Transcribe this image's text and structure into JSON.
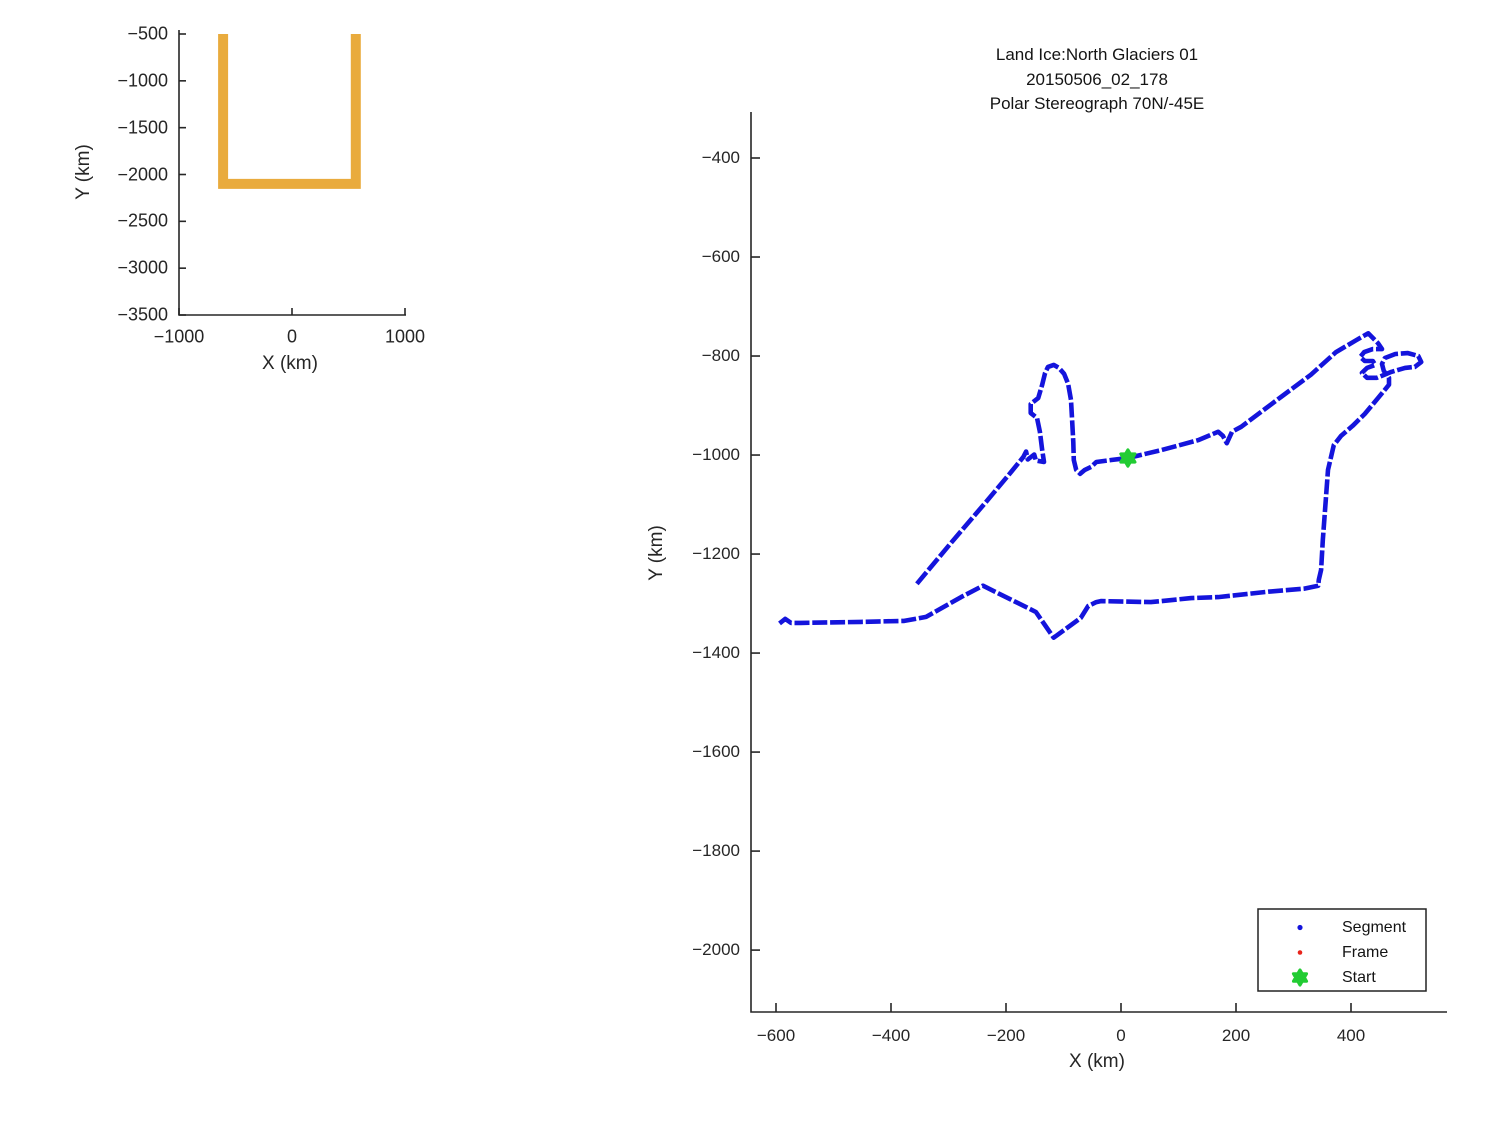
{
  "main_plot": {
    "title_lines": [
      "Land Ice:North Glaciers 01",
      "20150506_02_178",
      "Polar Stereograph 70N/-45E"
    ],
    "xlabel": "X (km)",
    "ylabel": "Y (km)",
    "x_ticks": [
      -600,
      -400,
      -200,
      0,
      200,
      400
    ],
    "y_ticks": [
      -400,
      -600,
      -800,
      -1000,
      -1200,
      -1400,
      -1600,
      -1800,
      -2000
    ],
    "legend": {
      "items": [
        {
          "label": "Segment",
          "marker": "dot",
          "color": "#1414dc"
        },
        {
          "label": "Frame",
          "marker": "dot",
          "color": "#e8231a"
        },
        {
          "label": "Start",
          "marker": "hexagram",
          "color": "#22cc33"
        }
      ]
    }
  },
  "mini_plot": {
    "xlabel": "X (km)",
    "ylabel": "Y (km)",
    "x_ticks": [
      -1000,
      0,
      1000
    ],
    "y_ticks": [
      -500,
      -1000,
      -1500,
      -2000,
      -2500,
      -3000,
      -3500
    ]
  },
  "colors": {
    "segment_blue": "#1414dc",
    "frame_red": "#e8231a",
    "start_green": "#22cc33",
    "overview_orange": "#e9ab3d",
    "axis": "#262626"
  },
  "chart_data": [
    {
      "type": "line",
      "name": "main-flight-track",
      "title": "Land Ice:North Glaciers 01 20150506_02_178 Polar Stereograph 70N/-45E",
      "xlabel": "X (km)",
      "ylabel": "Y (km)",
      "xlim": [
        -643,
        569
      ],
      "ylim": [
        -2125,
        -307
      ],
      "x_ticks": [
        -600,
        -400,
        -200,
        0,
        200,
        400
      ],
      "y_ticks": [
        -400,
        -600,
        -800,
        -1000,
        -1200,
        -1400,
        -1600,
        -1800,
        -2000
      ],
      "grid": false,
      "legend_position": "southeast",
      "series": [
        {
          "name": "Segment",
          "color": "#1414dc",
          "points": [
            [
              -355,
              -1260
            ],
            [
              -296,
              -1178
            ],
            [
              -235,
              -1095
            ],
            [
              -191,
              -1034
            ],
            [
              -170,
              -1004
            ],
            [
              -165,
              -993
            ],
            [
              -162,
              -1009
            ],
            [
              -151,
              -999
            ],
            [
              -148,
              -1011
            ],
            [
              -134,
              -1014
            ],
            [
              -137,
              -990
            ],
            [
              -141,
              -953
            ],
            [
              -146,
              -925
            ],
            [
              -157,
              -915
            ],
            [
              -157,
              -897
            ],
            [
              -144,
              -885
            ],
            [
              -137,
              -858
            ],
            [
              -132,
              -834
            ],
            [
              -127,
              -822
            ],
            [
              -117,
              -818
            ],
            [
              -108,
              -824
            ],
            [
              -99,
              -836
            ],
            [
              -92,
              -856
            ],
            [
              -87,
              -889
            ],
            [
              -85,
              -929
            ],
            [
              -83,
              -974
            ],
            [
              -82,
              -1010
            ],
            [
              -78,
              -1030
            ],
            [
              -71,
              -1038
            ],
            [
              -63,
              -1030
            ],
            [
              -52,
              -1024
            ],
            [
              -43,
              -1014
            ],
            [
              -17,
              -1010
            ],
            [
              12,
              -1006
            ],
            [
              70,
              -990
            ],
            [
              134,
              -970
            ],
            [
              169,
              -953
            ],
            [
              177,
              -961
            ],
            [
              184,
              -976
            ],
            [
              193,
              -953
            ],
            [
              209,
              -943
            ],
            [
              278,
              -883
            ],
            [
              330,
              -838
            ],
            [
              374,
              -792
            ],
            [
              409,
              -768
            ],
            [
              430,
              -754
            ],
            [
              447,
              -774
            ],
            [
              454,
              -786
            ],
            [
              438,
              -786
            ],
            [
              423,
              -792
            ],
            [
              416,
              -802
            ],
            [
              424,
              -810
            ],
            [
              438,
              -810
            ],
            [
              442,
              -818
            ],
            [
              428,
              -824
            ],
            [
              419,
              -834
            ],
            [
              428,
              -844
            ],
            [
              445,
              -844
            ],
            [
              470,
              -832
            ],
            [
              494,
              -824
            ],
            [
              511,
              -822
            ],
            [
              522,
              -812
            ],
            [
              517,
              -800
            ],
            [
              499,
              -794
            ],
            [
              477,
              -796
            ],
            [
              459,
              -804
            ],
            [
              454,
              -816
            ],
            [
              457,
              -830
            ],
            [
              466,
              -844
            ],
            [
              466,
              -858
            ],
            [
              447,
              -885
            ],
            [
              424,
              -917
            ],
            [
              403,
              -941
            ],
            [
              383,
              -961
            ],
            [
              370,
              -980
            ],
            [
              360,
              -1030
            ],
            [
              351,
              -1172
            ],
            [
              348,
              -1232
            ],
            [
              344,
              -1252
            ],
            [
              343,
              -1264
            ],
            [
              318,
              -1270
            ],
            [
              256,
              -1276
            ],
            [
              169,
              -1287
            ],
            [
              122,
              -1289
            ],
            [
              52,
              -1297
            ],
            [
              -35,
              -1295
            ],
            [
              -43,
              -1297
            ],
            [
              -57,
              -1305
            ],
            [
              -70,
              -1329
            ],
            [
              -117,
              -1369
            ],
            [
              -148,
              -1317
            ],
            [
              -240,
              -1264
            ],
            [
              -278,
              -1287
            ],
            [
              -339,
              -1327
            ],
            [
              -377,
              -1335
            ],
            [
              -452,
              -1337
            ],
            [
              -557,
              -1339
            ],
            [
              -574,
              -1339
            ],
            [
              -584,
              -1331
            ],
            [
              -595,
              -1341
            ]
          ]
        },
        {
          "name": "Frame",
          "color": "#e8231a",
          "points": []
        },
        {
          "name": "Start",
          "color": "#22cc33",
          "points": [
            [
              12,
              -1006
            ]
          ]
        }
      ]
    },
    {
      "type": "line",
      "name": "overview-coverage",
      "xlabel": "X (km)",
      "ylabel": "Y (km)",
      "xlim": [
        -1000,
        1000
      ],
      "ylim": [
        -3500,
        -500
      ],
      "x_ticks": [
        -1000,
        0,
        1000
      ],
      "y_ticks": [
        -500,
        -1000,
        -1500,
        -2000,
        -2500,
        -3000,
        -3500
      ],
      "grid": false,
      "series": [
        {
          "name": "coverage-outline",
          "color": "#e9ab3d",
          "points": [
            [
              -610,
              -500
            ],
            [
              -610,
              -2100
            ],
            [
              565,
              -2100
            ],
            [
              565,
              -500
            ]
          ]
        }
      ]
    }
  ]
}
